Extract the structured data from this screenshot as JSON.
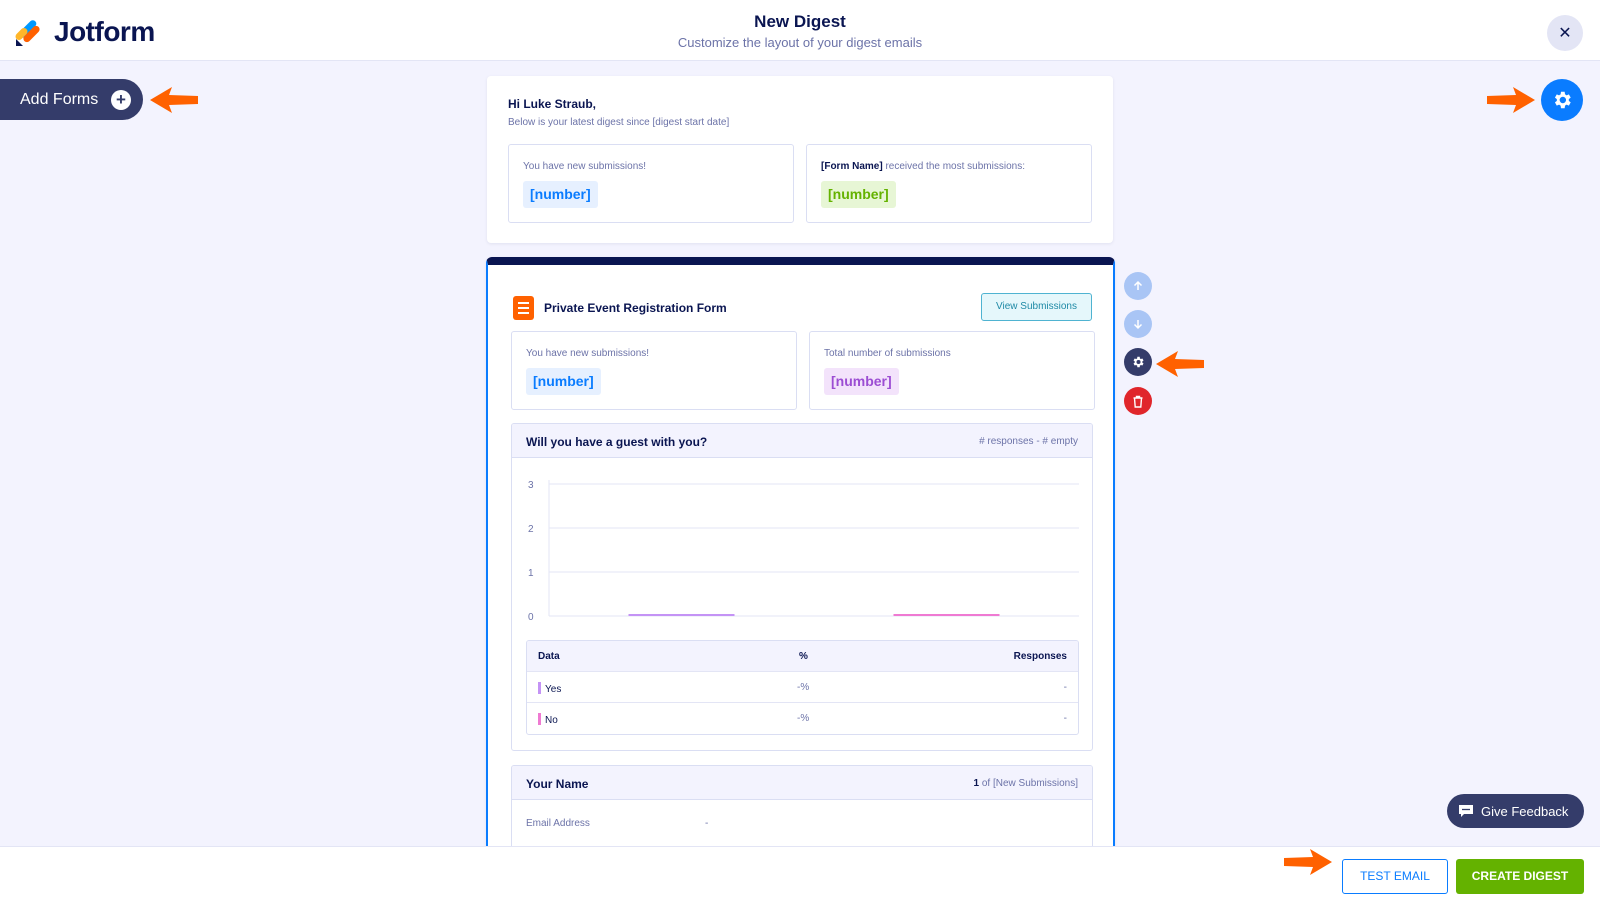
{
  "header": {
    "brand": "Jotform",
    "title": "New Digest",
    "subtitle": "Customize the layout of your digest emails",
    "close_icon": "close-icon"
  },
  "sidebar": {
    "add_forms_label": "Add Forms",
    "add_icon": "plus-circle-icon"
  },
  "settings_icon": "gear-icon",
  "greeting": {
    "name_line": "Hi Luke Straub,",
    "sub_line": "Below is your latest digest since [digest start date]",
    "stats": [
      {
        "label": "You have new submissions!",
        "value": "[number]",
        "color": "#0a7cff"
      },
      {
        "label_bold": "[Form Name]",
        "label": " received the most submissions:",
        "value": "[number]",
        "color": "#64b200"
      }
    ]
  },
  "form": {
    "title": "Private Event Registration Form",
    "view_button": "View Submissions",
    "stats": [
      {
        "label": "You have new submissions!",
        "value": "[number]"
      },
      {
        "label": "Total number of submissions",
        "value": "[number]"
      }
    ],
    "question": {
      "title": "Will you have a guest with you?",
      "meta": "# responses - # empty"
    },
    "table": {
      "headers": [
        "Data",
        "%",
        "Responses"
      ],
      "rows": [
        {
          "label": "Yes",
          "percent": "-%",
          "responses": "-",
          "color": "#c493f5"
        },
        {
          "label": "No",
          "percent": "-%",
          "responses": "-",
          "color": "#ef7ad2"
        }
      ]
    },
    "name_field": {
      "title": "Your Name",
      "meta_bold": "1",
      "meta_rest": " of [New Submissions]",
      "row_label": "Email Address",
      "row_value": "-"
    }
  },
  "chart_data": {
    "type": "bar",
    "categories": [
      "Yes",
      "No"
    ],
    "values": [
      0,
      0
    ],
    "colors": [
      "#c493f5",
      "#ef7ad2"
    ],
    "ylim": [
      0,
      3
    ],
    "yticks": [
      "0",
      "1",
      "2",
      "3"
    ],
    "grid": true,
    "title": "",
    "xlabel": "",
    "ylabel": ""
  },
  "side_controls": [
    {
      "name": "move-up-icon",
      "color": "#a9c5f5"
    },
    {
      "name": "move-down-icon",
      "color": "#a9c5f5"
    },
    {
      "name": "gear-icon",
      "color": "#343c6a"
    },
    {
      "name": "trash-icon",
      "color": "#e0262b"
    }
  ],
  "feedback_label": "Give Feedback",
  "footer": {
    "test_email": "TEST EMAIL",
    "create_digest": "CREATE DIGEST"
  }
}
